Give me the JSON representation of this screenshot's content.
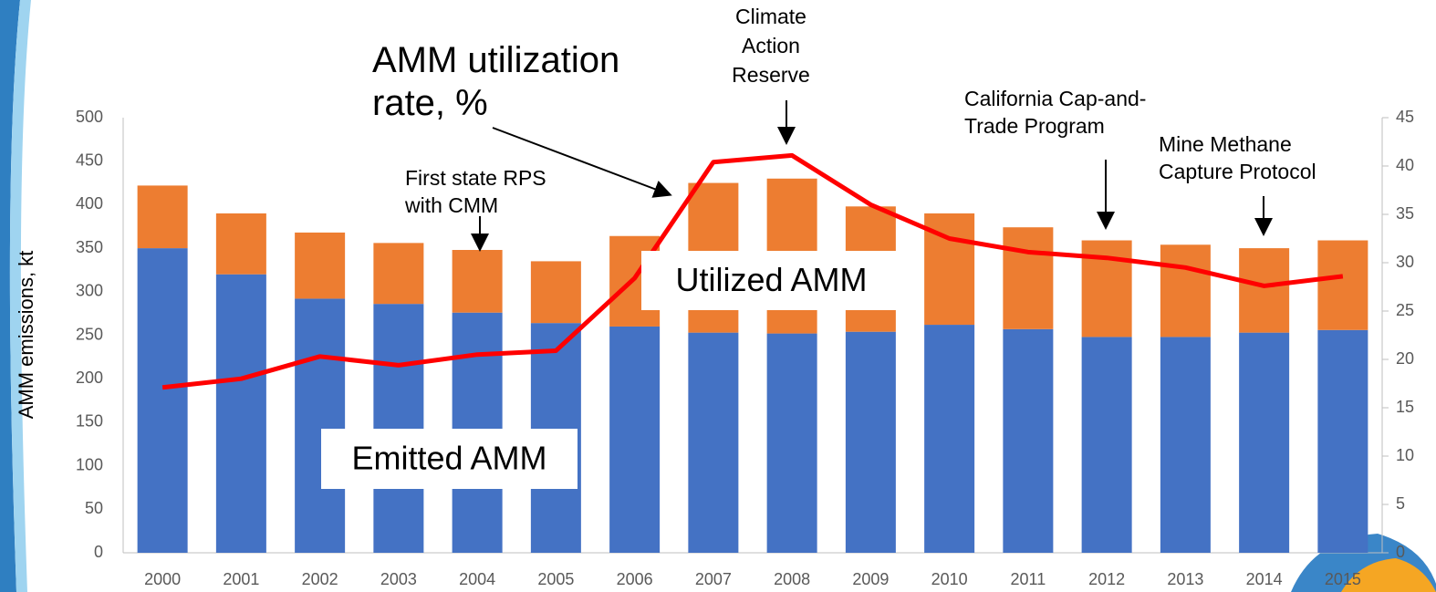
{
  "chart_data": {
    "type": "stacked-bar-line",
    "categories": [
      "2000",
      "2001",
      "2002",
      "2003",
      "2004",
      "2005",
      "2006",
      "2007",
      "2008",
      "2009",
      "2010",
      "2011",
      "2012",
      "2013",
      "2014",
      "2015"
    ],
    "series": [
      {
        "name": "Emitted AMM",
        "color": "#4472c4",
        "values": [
          350,
          320,
          292,
          286,
          276,
          264,
          260,
          253,
          252,
          254,
          262,
          257,
          248,
          248,
          253,
          256
        ]
      },
      {
        "name": "Utilized AMM",
        "color": "#ed7d31",
        "values": [
          72,
          70,
          76,
          70,
          72,
          71,
          104,
          172,
          178,
          144,
          128,
          117,
          111,
          106,
          97,
          103
        ]
      },
      {
        "name": "AMM utilization rate, %",
        "color": "#ff0000",
        "axis": "y2",
        "values": [
          17.1,
          18.0,
          20.3,
          19.4,
          20.5,
          20.9,
          28.4,
          40.4,
          41.1,
          36.0,
          32.5,
          31.1,
          30.5,
          29.5,
          27.6,
          28.6
        ]
      }
    ],
    "ylabel": "AMM emissions, kt",
    "ylim": [
      0,
      500
    ],
    "yticks": [
      0,
      50,
      100,
      150,
      200,
      250,
      300,
      350,
      400,
      450,
      500
    ],
    "y2lim": [
      0,
      45
    ],
    "y2ticks": [
      0,
      5,
      10,
      15,
      20,
      25,
      30,
      35,
      40,
      45
    ],
    "annotations": [
      {
        "lines": [
          "First state RPS",
          "with CMM"
        ]
      },
      {
        "lines": [
          "Climate",
          "Action",
          "Reserve"
        ]
      },
      {
        "lines": [
          "California Cap-and-",
          "Trade Program"
        ]
      },
      {
        "lines": [
          "Mine Methane",
          "Capture Protocol"
        ]
      }
    ]
  }
}
